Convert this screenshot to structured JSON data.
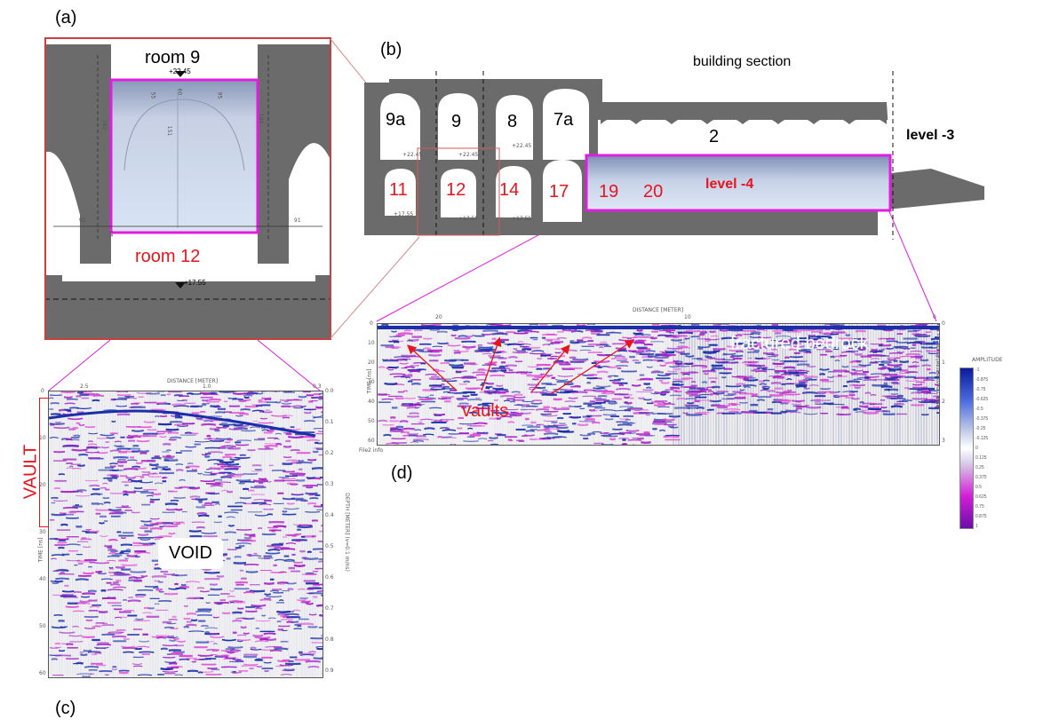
{
  "panels": {
    "a": {
      "label": "(a)",
      "room_top": "room 9",
      "room_bottom": "room 12",
      "elev_top": "+22.45",
      "elev_bottom": "+17.55",
      "dims": [
        "92",
        "91",
        "183",
        "184",
        "55",
        "60",
        "151",
        "95",
        "55"
      ]
    },
    "b": {
      "label": "(b)",
      "title": "building section",
      "rooms_upper": [
        "9a",
        "9",
        "8",
        "7a",
        "2"
      ],
      "rooms_lower": [
        "11",
        "12",
        "14",
        "17",
        "19",
        "20"
      ],
      "level_upper": "level -3",
      "level_lower": "level -4",
      "elevations": [
        "+22.45",
        "+22.45",
        "+22.45",
        "+17.55",
        "+17.55",
        "+17.55"
      ]
    },
    "c": {
      "label": "(c)",
      "vault": "VAULT",
      "void": "VOID",
      "x_axis_title": "DISTANCE [METER]",
      "x_ticks": [
        "2.5",
        "1.0",
        "0.3"
      ],
      "y_axis_title": "TIME [ns]",
      "y_ticks": [
        "0",
        "10",
        "20",
        "30",
        "40",
        "50",
        "60"
      ],
      "y2_axis_title": "DEPTH [METER] (v=0.1 m/ns)",
      "y2_ticks": [
        "0.0",
        "0.1",
        "0.2",
        "0.3",
        "0.4",
        "0.5",
        "0.6",
        "0.7",
        "0.8",
        "0.9"
      ]
    },
    "d": {
      "label": "(d)",
      "bedrock": "fractured bedrock",
      "vaults": "vaults",
      "x_axis_title": "DISTANCE [METER]",
      "x_ticks": [
        "20",
        "10",
        "0"
      ],
      "y_axis_title": "TIME [ns]",
      "y_ticks": [
        "0",
        "10",
        "20",
        "30",
        "40",
        "50",
        "60"
      ],
      "y2_axis_title": "DEPTH [METER] (v=0.1 m/ns)",
      "y2_ticks": [
        "0",
        "1",
        "2",
        "3"
      ],
      "footer": "File2 info",
      "colorbar_title": "AMPLITUDE",
      "colorbar_ticks": [
        "-1",
        "-0.875",
        "-0.75",
        "-0.625",
        "-0.5",
        "-0.375",
        "-0.25",
        "-0.125",
        "0",
        "0.125",
        "0.25",
        "0.375",
        "0.5",
        "0.625",
        "0.75",
        "0.875",
        "1"
      ]
    }
  },
  "colors": {
    "red": "#e8141d",
    "magenta": "#e21ce0",
    "wall_gray": "#6b6b6b",
    "gpr_blue": "#1b2fa8",
    "gpr_purple": "#7a1aa8"
  }
}
